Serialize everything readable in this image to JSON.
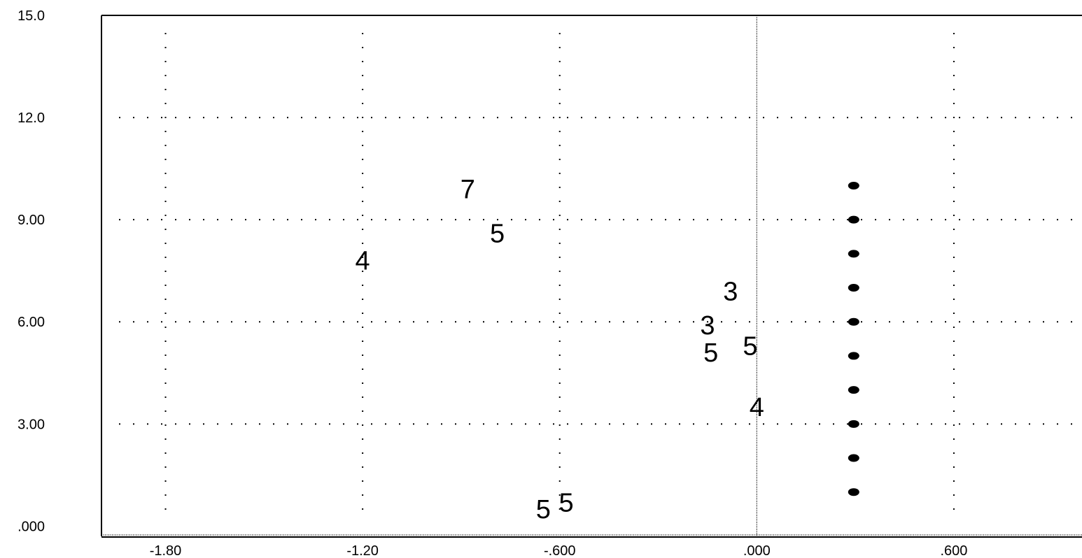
{
  "chart_data": {
    "type": "scatter",
    "title": "",
    "xlabel": "",
    "ylabel": "",
    "xlim": [
      -1.995,
      0.99
    ],
    "ylim": [
      -0.3,
      15.0
    ],
    "grid": true,
    "zero_line_x": 0.0,
    "colors": {
      "ink": "#000000",
      "background": "#ffffff"
    },
    "x_ticks": [
      {
        "value": -1.8,
        "label": "-1.80"
      },
      {
        "value": -1.2,
        "label": "-1.20"
      },
      {
        "value": -0.6,
        "label": "-.600"
      },
      {
        "value": 0.0,
        "label": ".000"
      },
      {
        "value": 0.6,
        "label": ".600"
      }
    ],
    "y_ticks": [
      {
        "value": 0.0,
        "label": ".000"
      },
      {
        "value": 3.0,
        "label": "3.00"
      },
      {
        "value": 6.0,
        "label": "6.00"
      },
      {
        "value": 9.0,
        "label": "9.00"
      },
      {
        "value": 12.0,
        "label": "12.0"
      },
      {
        "value": 15.0,
        "label": "15.0"
      }
    ],
    "series": [
      {
        "marker": "text",
        "points": [
          {
            "x": -0.88,
            "y": 9.9,
            "label": "7"
          },
          {
            "x": -0.79,
            "y": 8.6,
            "label": "5"
          },
          {
            "x": -1.2,
            "y": 7.8,
            "label": "4"
          },
          {
            "x": -0.08,
            "y": 6.9,
            "label": "3"
          },
          {
            "x": -0.15,
            "y": 5.9,
            "label": "3"
          },
          {
            "x": -0.14,
            "y": 5.1,
            "label": "5"
          },
          {
            "x": -0.02,
            "y": 5.3,
            "label": "5"
          },
          {
            "x": 0.0,
            "y": 3.5,
            "label": "4"
          },
          {
            "x": -0.65,
            "y": 0.5,
            "label": "5"
          },
          {
            "x": -0.58,
            "y": 0.7,
            "label": "5"
          }
        ]
      },
      {
        "marker": "dot",
        "points": [
          {
            "x": 0.295,
            "y": 10.0
          },
          {
            "x": 0.295,
            "y": 9.0
          },
          {
            "x": 0.295,
            "y": 8.0
          },
          {
            "x": 0.295,
            "y": 7.0
          },
          {
            "x": 0.295,
            "y": 6.0
          },
          {
            "x": 0.295,
            "y": 5.0
          },
          {
            "x": 0.295,
            "y": 4.0
          },
          {
            "x": 0.295,
            "y": 3.0
          },
          {
            "x": 0.295,
            "y": 2.0
          },
          {
            "x": 0.295,
            "y": 1.0
          }
        ]
      }
    ]
  }
}
